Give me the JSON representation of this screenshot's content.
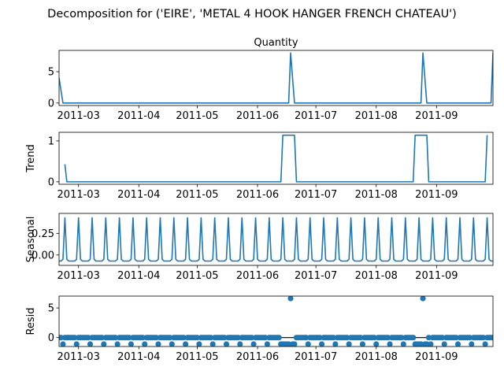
{
  "figure": {
    "title": "Decomposition for ('EIRE', 'METAL 4 HOOK HANGER FRENCH CHATEAU')",
    "line_color": "#1f77b4",
    "xlim": [
      "2011-02-19",
      "2011-09-30"
    ],
    "x_ticks": [
      "2011-03-01",
      "2011-04-01",
      "2011-05-01",
      "2011-06-01",
      "2011-07-01",
      "2011-08-01",
      "2011-09-01"
    ],
    "x_tick_labels": [
      "2011-03",
      "2011-04",
      "2011-05",
      "2011-06",
      "2011-07",
      "2011-08",
      "2011-09"
    ]
  },
  "chart_data": [
    {
      "type": "line",
      "title": "Quantity",
      "ylabel": "",
      "ylim": [
        -0.4,
        8.4
      ],
      "yticks": [
        0,
        5
      ],
      "series": [
        {
          "points": [
            [
              "2011-02-19",
              4
            ],
            [
              "2011-02-21",
              0
            ],
            [
              "2011-06-17",
              0
            ],
            [
              "2011-06-18",
              8
            ],
            [
              "2011-06-20",
              0
            ],
            [
              "2011-08-24",
              0
            ],
            [
              "2011-08-25",
              8
            ],
            [
              "2011-08-27",
              0
            ],
            [
              "2011-09-29",
              0
            ],
            [
              "2011-09-30",
              8
            ]
          ]
        }
      ]
    },
    {
      "type": "line",
      "ylabel": "Trend",
      "ylim": [
        -0.06,
        1.21
      ],
      "yticks": [
        0,
        1
      ],
      "series": [
        {
          "points": [
            [
              "2011-02-22",
              0.43
            ],
            [
              "2011-02-23",
              0
            ],
            [
              "2011-06-13",
              0
            ],
            [
              "2011-06-14",
              1.14
            ],
            [
              "2011-06-20",
              1.14
            ],
            [
              "2011-06-21",
              0
            ],
            [
              "2011-08-20",
              0
            ],
            [
              "2011-08-21",
              1.14
            ],
            [
              "2011-08-27",
              1.14
            ],
            [
              "2011-08-28",
              0
            ],
            [
              "2011-09-26",
              0
            ],
            [
              "2011-09-27",
              1.14
            ]
          ]
        }
      ]
    },
    {
      "type": "line",
      "ylabel": "Seasonal",
      "ylim": [
        -0.12,
        0.48
      ],
      "yticks": [
        0,
        0.25
      ],
      "ytick_labels": [
        "0.00",
        "0.25"
      ],
      "series": [
        {
          "periodic": {
            "start": "2011-02-19",
            "end": "2011-09-30",
            "period_days": 7,
            "peak_offset_days": 3,
            "peak_value": 0.43,
            "base_value": -0.07,
            "shoulder_value": -0.05
          }
        }
      ]
    },
    {
      "type": "scatter",
      "ylabel": "Resid",
      "ylim": [
        -1.5,
        7.0
      ],
      "yticks": [
        0,
        5
      ],
      "baseline": 0,
      "series": [
        {
          "marker": "circle",
          "rule": {
            "start": "2011-02-19",
            "end": "2011-09-30",
            "default_value": 0,
            "low_value": -1.1,
            "low_every_days": 7,
            "low_offset_days": 2,
            "overrides": [
              {
                "date": "2011-06-14",
                "value": -1.1
              },
              {
                "date": "2011-06-15",
                "value": -1.1
              },
              {
                "date": "2011-06-16",
                "value": -1.1
              },
              {
                "date": "2011-06-17",
                "value": -1.1
              },
              {
                "date": "2011-06-18",
                "value": 6.6
              },
              {
                "date": "2011-06-19",
                "value": -1.1
              },
              {
                "date": "2011-06-20",
                "value": -1.1
              },
              {
                "date": "2011-08-21",
                "value": -1.1
              },
              {
                "date": "2011-08-22",
                "value": -1.1
              },
              {
                "date": "2011-08-23",
                "value": -1.1
              },
              {
                "date": "2011-08-24",
                "value": -1.1
              },
              {
                "date": "2011-08-25",
                "value": 6.6
              },
              {
                "date": "2011-08-26",
                "value": -1.1
              },
              {
                "date": "2011-08-27",
                "value": -1.1
              }
            ]
          }
        }
      ]
    }
  ]
}
